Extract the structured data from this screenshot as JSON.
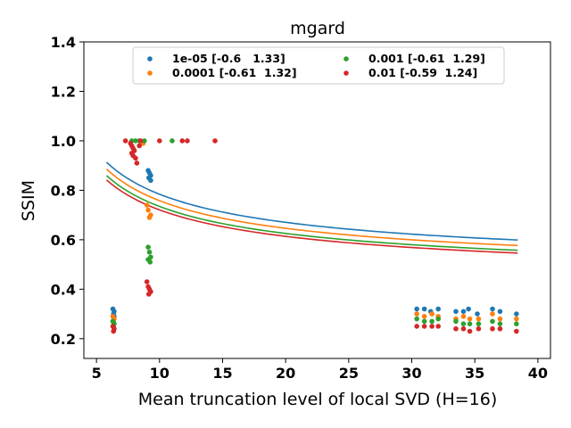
{
  "chart_data": {
    "type": "scatter",
    "title": "mgard",
    "xlabel": "Mean truncation level of local SVD (H=16)",
    "ylabel": "SSIM",
    "xlim": [
      4,
      41
    ],
    "ylim": [
      0.12,
      1.4
    ],
    "xticks": [
      5,
      10,
      15,
      20,
      25,
      30,
      35,
      40
    ],
    "yticks": [
      0.2,
      0.4,
      0.6,
      0.8,
      1.0,
      1.2,
      1.4
    ],
    "xtick_labels": [
      "5",
      "10",
      "15",
      "20",
      "25",
      "30",
      "35",
      "40"
    ],
    "ytick_labels": [
      "0.2",
      "0.4",
      "0.6",
      "0.8",
      "1.0",
      "1.2",
      "1.4"
    ],
    "grid": false,
    "legend_placement": "top-center",
    "series": [
      {
        "name": "1e-05 [-0.6   1.33]",
        "color": "#1f77b4",
        "fit": [
          -0.6,
          1.33
        ],
        "points": [
          [
            6.3,
            0.32
          ],
          [
            6.4,
            0.31
          ],
          [
            6.35,
            0.3
          ],
          [
            6.4,
            0.29
          ],
          [
            6.3,
            0.27
          ],
          [
            9.1,
            0.88
          ],
          [
            9.2,
            0.87
          ],
          [
            9.3,
            0.86
          ],
          [
            9.15,
            0.85
          ],
          [
            9.3,
            0.84
          ],
          [
            30.4,
            0.32
          ],
          [
            31.0,
            0.32
          ],
          [
            31.5,
            0.31
          ],
          [
            32.1,
            0.32
          ],
          [
            33.5,
            0.31
          ],
          [
            34.1,
            0.31
          ],
          [
            34.5,
            0.32
          ],
          [
            35.2,
            0.3
          ],
          [
            36.4,
            0.32
          ],
          [
            37.0,
            0.31
          ],
          [
            38.3,
            0.3
          ]
        ]
      },
      {
        "name": "0.0001 [-0.61  1.32]",
        "color": "#ff7f0e",
        "fit": [
          -0.61,
          1.32
        ],
        "points": [
          [
            6.3,
            0.29
          ],
          [
            6.4,
            0.28
          ],
          [
            6.35,
            0.27
          ],
          [
            6.4,
            0.26
          ],
          [
            8.7,
            0.99
          ],
          [
            9.0,
            0.74
          ],
          [
            9.1,
            0.72
          ],
          [
            9.3,
            0.7
          ],
          [
            9.2,
            0.69
          ],
          [
            30.4,
            0.3
          ],
          [
            31.0,
            0.29
          ],
          [
            31.6,
            0.3
          ],
          [
            32.1,
            0.29
          ],
          [
            33.5,
            0.28
          ],
          [
            34.1,
            0.29
          ],
          [
            34.6,
            0.28
          ],
          [
            35.3,
            0.28
          ],
          [
            36.4,
            0.3
          ],
          [
            37.0,
            0.28
          ],
          [
            38.3,
            0.28
          ]
        ]
      },
      {
        "name": "0.001 [-0.61  1.29]",
        "color": "#2ca02c",
        "fit": [
          -0.61,
          1.29
        ],
        "points": [
          [
            6.3,
            0.27
          ],
          [
            6.4,
            0.26
          ],
          [
            6.35,
            0.25
          ],
          [
            7.8,
            1.0
          ],
          [
            8.1,
            1.0
          ],
          [
            8.4,
            1.0
          ],
          [
            8.8,
            1.0
          ],
          [
            11.0,
            1.0
          ],
          [
            9.1,
            0.57
          ],
          [
            9.2,
            0.55
          ],
          [
            9.3,
            0.53
          ],
          [
            9.1,
            0.52
          ],
          [
            9.25,
            0.51
          ],
          [
            30.4,
            0.28
          ],
          [
            31.0,
            0.27
          ],
          [
            31.6,
            0.27
          ],
          [
            32.1,
            0.28
          ],
          [
            33.5,
            0.27
          ],
          [
            34.1,
            0.26
          ],
          [
            34.6,
            0.26
          ],
          [
            35.3,
            0.26
          ],
          [
            36.4,
            0.27
          ],
          [
            37.0,
            0.26
          ],
          [
            38.3,
            0.26
          ]
        ]
      },
      {
        "name": "0.01 [-0.59  1.24]",
        "color": "#d62728",
        "fit": [
          -0.59,
          1.24
        ],
        "points": [
          [
            6.3,
            0.25
          ],
          [
            6.4,
            0.24
          ],
          [
            6.35,
            0.23
          ],
          [
            7.3,
            1.0
          ],
          [
            7.7,
            0.99
          ],
          [
            7.8,
            0.98
          ],
          [
            7.9,
            0.97
          ],
          [
            8.0,
            0.96
          ],
          [
            7.8,
            0.95
          ],
          [
            7.9,
            0.94
          ],
          [
            8.1,
            0.93
          ],
          [
            8.2,
            0.91
          ],
          [
            8.4,
            0.98
          ],
          [
            8.5,
            1.0
          ],
          [
            10.0,
            1.0
          ],
          [
            11.8,
            1.0
          ],
          [
            12.2,
            1.0
          ],
          [
            14.4,
            1.0
          ],
          [
            9.0,
            0.43
          ],
          [
            9.1,
            0.41
          ],
          [
            9.2,
            0.4
          ],
          [
            9.3,
            0.39
          ],
          [
            9.15,
            0.38
          ],
          [
            30.4,
            0.25
          ],
          [
            31.0,
            0.25
          ],
          [
            31.6,
            0.25
          ],
          [
            32.1,
            0.25
          ],
          [
            33.5,
            0.24
          ],
          [
            34.1,
            0.24
          ],
          [
            34.6,
            0.23
          ],
          [
            35.3,
            0.24
          ],
          [
            36.4,
            0.24
          ],
          [
            37.0,
            0.24
          ],
          [
            38.3,
            0.23
          ]
        ]
      }
    ]
  }
}
